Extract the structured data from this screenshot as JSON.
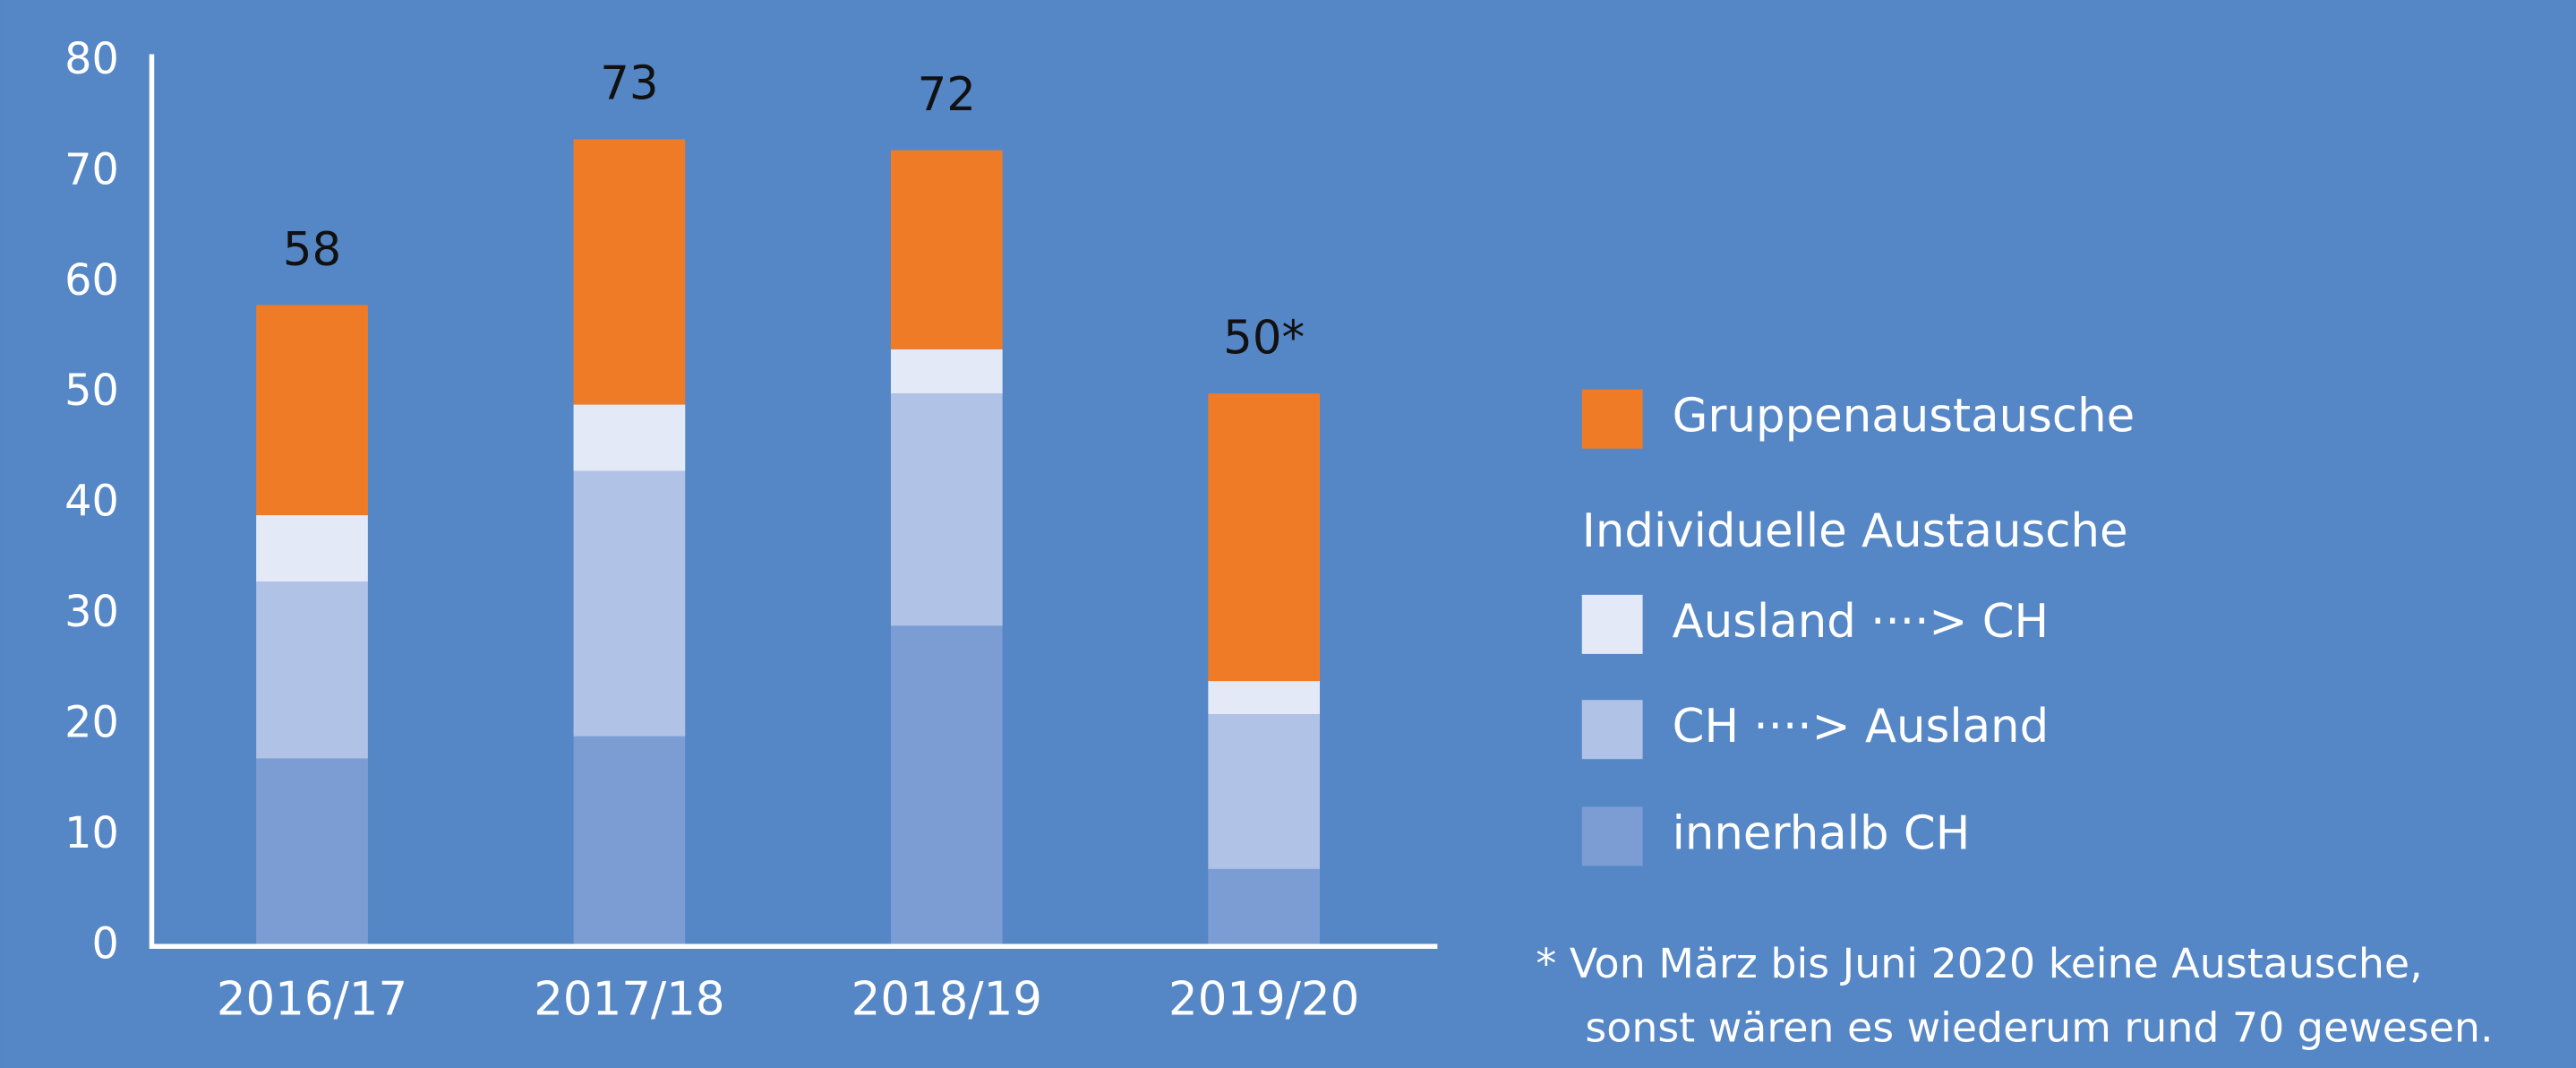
{
  "chart_data": {
    "type": "stacked_bar",
    "categories": [
      "2016/17",
      "2017/18",
      "2018/19",
      "2019/20"
    ],
    "series": [
      {
        "name": "innerhalb CH",
        "color": "#7c9dd4",
        "values": [
          17,
          19,
          29,
          7
        ]
      },
      {
        "name": "CH ····> Ausland",
        "color": "#b0c2e6",
        "values": [
          16,
          24,
          21,
          14
        ]
      },
      {
        "name": "Ausland ····> CH",
        "color": "#e3e9f7",
        "values": [
          6,
          6,
          4,
          3
        ]
      },
      {
        "name": "Gruppenaustausche",
        "color": "#f07b26",
        "values": [
          19,
          24,
          18,
          26
        ]
      }
    ],
    "totals": {
      "values": [
        58,
        73,
        72,
        50
      ],
      "value_labels": [
        "58",
        "73",
        "72",
        "50*"
      ]
    },
    "legend_heading": "Individuelle Austausche",
    "footnote": [
      "* Von März bis Juni 2020 keine Austausche,",
      "sonst wären es wiederum rund 70 gewesen."
    ],
    "ylim": [
      0,
      80
    ],
    "yticks": [
      0,
      10,
      20,
      30,
      40,
      50,
      60,
      70,
      80
    ],
    "grid": false,
    "legend": "right"
  }
}
